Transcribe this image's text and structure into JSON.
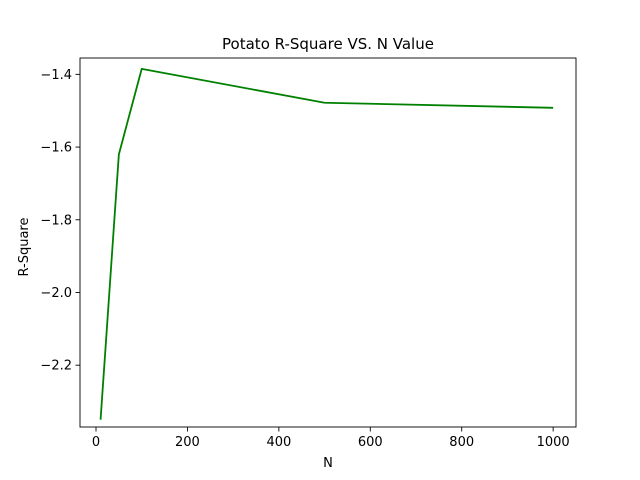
{
  "chart_data": {
    "type": "line",
    "title": "Potato R-Square VS. N Value",
    "xlabel": "N",
    "ylabel": "R-Square",
    "xlim": [
      -35,
      1050
    ],
    "ylim": [
      -2.37,
      -1.355
    ],
    "xticks": [
      0,
      200,
      400,
      600,
      800,
      1000
    ],
    "xtick_labels": [
      "0",
      "200",
      "400",
      "600",
      "800",
      "1000"
    ],
    "yticks": [
      -2.2,
      -2.0,
      -1.8,
      -1.6,
      -1.4
    ],
    "ytick_labels": [
      "−2.2",
      "−2.0",
      "−1.8",
      "−1.6",
      "−1.4"
    ],
    "grid": false,
    "series": [
      {
        "color": "#008000",
        "x": [
          10,
          50,
          100,
          500,
          1000
        ],
        "y": [
          -2.35,
          -1.62,
          -1.385,
          -1.478,
          -1.492
        ]
      }
    ]
  }
}
